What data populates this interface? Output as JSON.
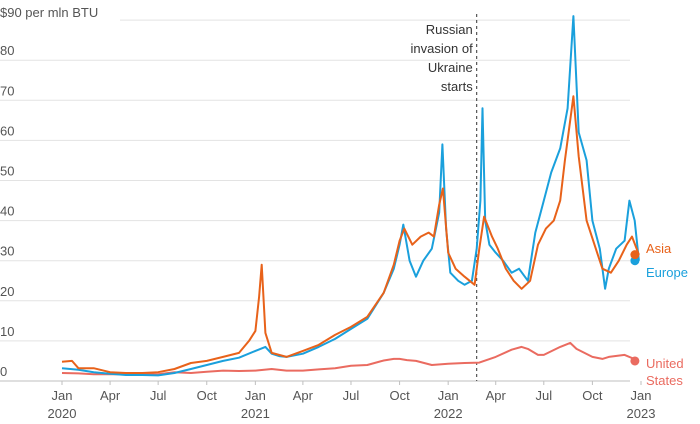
{
  "chart_data": {
    "type": "line",
    "ylabel_prefix": "$90 per mln BTU",
    "ylim": [
      0,
      90
    ],
    "y_ticks": [
      0,
      10,
      20,
      30,
      40,
      50,
      60,
      70,
      80
    ],
    "x_range": [
      "2020-01-01",
      "2023-01-01"
    ],
    "x_ticks": [
      {
        "date": "2020-01-01",
        "label": "Jan",
        "year": "2020"
      },
      {
        "date": "2020-04-01",
        "label": "Apr",
        "year": ""
      },
      {
        "date": "2020-07-01",
        "label": "Jul",
        "year": ""
      },
      {
        "date": "2020-10-01",
        "label": "Oct",
        "year": ""
      },
      {
        "date": "2021-01-01",
        "label": "Jan",
        "year": "2021"
      },
      {
        "date": "2021-04-01",
        "label": "Apr",
        "year": ""
      },
      {
        "date": "2021-07-01",
        "label": "Jul",
        "year": ""
      },
      {
        "date": "2021-10-01",
        "label": "Oct",
        "year": ""
      },
      {
        "date": "2022-01-01",
        "label": "Jan",
        "year": "2022"
      },
      {
        "date": "2022-04-01",
        "label": "Apr",
        "year": ""
      },
      {
        "date": "2022-07-01",
        "label": "Jul",
        "year": ""
      },
      {
        "date": "2022-10-01",
        "label": "Oct",
        "year": ""
      },
      {
        "date": "2023-01-01",
        "label": "Jan",
        "year": "2023"
      }
    ],
    "annotation": {
      "date": "2022-02-24",
      "lines": [
        "Russian",
        "invasion of",
        "Ukraine",
        "starts"
      ]
    },
    "series": [
      {
        "name": "Europe",
        "label_lines": [
          "Europe"
        ],
        "color": "#1aa0dc",
        "points": [
          [
            "2020-01-01",
            3.2
          ],
          [
            "2020-02-01",
            2.8
          ],
          [
            "2020-03-01",
            2.2
          ],
          [
            "2020-04-01",
            1.8
          ],
          [
            "2020-05-01",
            1.5
          ],
          [
            "2020-06-01",
            1.5
          ],
          [
            "2020-07-01",
            1.4
          ],
          [
            "2020-08-01",
            2.0
          ],
          [
            "2020-09-01",
            3.0
          ],
          [
            "2020-10-01",
            4.0
          ],
          [
            "2020-11-01",
            5.0
          ],
          [
            "2020-12-01",
            5.8
          ],
          [
            "2021-01-01",
            7.5
          ],
          [
            "2021-01-20",
            8.5
          ],
          [
            "2021-02-01",
            6.8
          ],
          [
            "2021-02-15",
            6.2
          ],
          [
            "2021-03-01",
            6.0
          ],
          [
            "2021-04-01",
            6.8
          ],
          [
            "2021-05-01",
            8.5
          ],
          [
            "2021-06-01",
            10.5
          ],
          [
            "2021-07-01",
            13.0
          ],
          [
            "2021-08-01",
            15.5
          ],
          [
            "2021-09-01",
            22.0
          ],
          [
            "2021-09-20",
            28.0
          ],
          [
            "2021-10-01",
            34.0
          ],
          [
            "2021-10-08",
            39.0
          ],
          [
            "2021-10-20",
            30.0
          ],
          [
            "2021-11-01",
            26.0
          ],
          [
            "2021-11-15",
            30.0
          ],
          [
            "2021-12-01",
            33.0
          ],
          [
            "2021-12-15",
            42.0
          ],
          [
            "2021-12-21",
            59.0
          ],
          [
            "2021-12-28",
            38.0
          ],
          [
            "2022-01-05",
            27.0
          ],
          [
            "2022-01-20",
            25.0
          ],
          [
            "2022-02-01",
            24.0
          ],
          [
            "2022-02-15",
            25.0
          ],
          [
            "2022-02-24",
            33.0
          ],
          [
            "2022-03-03",
            45.0
          ],
          [
            "2022-03-07",
            68.0
          ],
          [
            "2022-03-12",
            40.0
          ],
          [
            "2022-03-20",
            34.0
          ],
          [
            "2022-04-01",
            32.0
          ],
          [
            "2022-04-15",
            30.0
          ],
          [
            "2022-05-01",
            27.0
          ],
          [
            "2022-05-15",
            28.0
          ],
          [
            "2022-06-01",
            25.0
          ],
          [
            "2022-06-15",
            37.0
          ],
          [
            "2022-07-01",
            45.0
          ],
          [
            "2022-07-15",
            52.0
          ],
          [
            "2022-08-01",
            58.0
          ],
          [
            "2022-08-15",
            68.0
          ],
          [
            "2022-08-26",
            91.0
          ],
          [
            "2022-09-05",
            62.0
          ],
          [
            "2022-09-20",
            55.0
          ],
          [
            "2022-10-01",
            40.0
          ],
          [
            "2022-10-15",
            33.0
          ],
          [
            "2022-10-25",
            23.0
          ],
          [
            "2022-11-01",
            28.0
          ],
          [
            "2022-11-15",
            33.0
          ],
          [
            "2022-12-01",
            35.0
          ],
          [
            "2022-12-10",
            45.0
          ],
          [
            "2022-12-20",
            40.0
          ],
          [
            "2022-12-28",
            30.0
          ]
        ]
      },
      {
        "name": "Asia",
        "label_lines": [
          "Asia"
        ],
        "color": "#e8621a",
        "points": [
          [
            "2020-01-01",
            4.8
          ],
          [
            "2020-01-20",
            5.0
          ],
          [
            "2020-02-01",
            3.2
          ],
          [
            "2020-03-01",
            3.2
          ],
          [
            "2020-04-01",
            2.2
          ],
          [
            "2020-05-01",
            2.0
          ],
          [
            "2020-06-01",
            2.0
          ],
          [
            "2020-07-01",
            2.2
          ],
          [
            "2020-08-01",
            3.0
          ],
          [
            "2020-09-01",
            4.5
          ],
          [
            "2020-10-01",
            5.0
          ],
          [
            "2020-11-01",
            6.0
          ],
          [
            "2020-12-01",
            7.0
          ],
          [
            "2020-12-20",
            10.0
          ],
          [
            "2021-01-01",
            12.5
          ],
          [
            "2021-01-08",
            21.0
          ],
          [
            "2021-01-13",
            29.0
          ],
          [
            "2021-01-20",
            12.0
          ],
          [
            "2021-02-01",
            7.0
          ],
          [
            "2021-03-01",
            6.0
          ],
          [
            "2021-04-01",
            7.5
          ],
          [
            "2021-05-01",
            9.0
          ],
          [
            "2021-06-01",
            11.5
          ],
          [
            "2021-07-01",
            13.5
          ],
          [
            "2021-08-01",
            16.0
          ],
          [
            "2021-09-01",
            22.0
          ],
          [
            "2021-09-20",
            29.0
          ],
          [
            "2021-10-01",
            35.0
          ],
          [
            "2021-10-10",
            38.0
          ],
          [
            "2021-10-25",
            34.0
          ],
          [
            "2021-11-10",
            36.0
          ],
          [
            "2021-11-25",
            37.0
          ],
          [
            "2021-12-05",
            36.0
          ],
          [
            "2021-12-15",
            44.0
          ],
          [
            "2021-12-22",
            48.0
          ],
          [
            "2022-01-01",
            32.0
          ],
          [
            "2022-01-15",
            28.0
          ],
          [
            "2022-02-01",
            26.0
          ],
          [
            "2022-02-20",
            24.0
          ],
          [
            "2022-03-01",
            33.0
          ],
          [
            "2022-03-10",
            41.0
          ],
          [
            "2022-03-25",
            36.0
          ],
          [
            "2022-04-05",
            33.0
          ],
          [
            "2022-04-20",
            28.0
          ],
          [
            "2022-05-05",
            25.0
          ],
          [
            "2022-05-20",
            23.0
          ],
          [
            "2022-06-05",
            25.0
          ],
          [
            "2022-06-20",
            34.0
          ],
          [
            "2022-07-05",
            38.0
          ],
          [
            "2022-07-20",
            40.0
          ],
          [
            "2022-08-01",
            45.0
          ],
          [
            "2022-08-10",
            55.0
          ],
          [
            "2022-08-26",
            71.0
          ],
          [
            "2022-09-05",
            56.0
          ],
          [
            "2022-09-20",
            40.0
          ],
          [
            "2022-10-05",
            34.0
          ],
          [
            "2022-10-20",
            28.0
          ],
          [
            "2022-11-05",
            27.0
          ],
          [
            "2022-11-20",
            30.0
          ],
          [
            "2022-12-05",
            34.0
          ],
          [
            "2022-12-15",
            36.0
          ],
          [
            "2022-12-28",
            31.5
          ]
        ]
      },
      {
        "name": "United States",
        "label_lines": [
          "United",
          "States"
        ],
        "color": "#ea6b60",
        "points": [
          [
            "2020-01-01",
            2.0
          ],
          [
            "2020-02-01",
            1.9
          ],
          [
            "2020-03-01",
            1.7
          ],
          [
            "2020-04-01",
            1.7
          ],
          [
            "2020-05-01",
            1.7
          ],
          [
            "2020-06-01",
            1.6
          ],
          [
            "2020-07-01",
            1.7
          ],
          [
            "2020-08-01",
            2.2
          ],
          [
            "2020-09-01",
            2.0
          ],
          [
            "2020-10-01",
            2.3
          ],
          [
            "2020-11-01",
            2.6
          ],
          [
            "2020-12-01",
            2.5
          ],
          [
            "2021-01-01",
            2.6
          ],
          [
            "2021-02-01",
            3.0
          ],
          [
            "2021-03-01",
            2.6
          ],
          [
            "2021-04-01",
            2.6
          ],
          [
            "2021-05-01",
            2.9
          ],
          [
            "2021-06-01",
            3.2
          ],
          [
            "2021-07-01",
            3.8
          ],
          [
            "2021-08-01",
            4.0
          ],
          [
            "2021-09-01",
            5.1
          ],
          [
            "2021-09-20",
            5.5
          ],
          [
            "2021-10-01",
            5.5
          ],
          [
            "2021-10-15",
            5.2
          ],
          [
            "2021-11-01",
            5.0
          ],
          [
            "2021-12-01",
            4.0
          ],
          [
            "2022-01-01",
            4.3
          ],
          [
            "2022-02-01",
            4.5
          ],
          [
            "2022-03-01",
            4.6
          ],
          [
            "2022-04-01",
            6.0
          ],
          [
            "2022-05-01",
            7.8
          ],
          [
            "2022-05-20",
            8.5
          ],
          [
            "2022-06-01",
            8.0
          ],
          [
            "2022-06-20",
            6.5
          ],
          [
            "2022-07-01",
            6.5
          ],
          [
            "2022-08-01",
            8.5
          ],
          [
            "2022-08-20",
            9.5
          ],
          [
            "2022-09-01",
            8.0
          ],
          [
            "2022-10-01",
            6.0
          ],
          [
            "2022-10-20",
            5.5
          ],
          [
            "2022-11-01",
            6.0
          ],
          [
            "2022-12-01",
            6.5
          ],
          [
            "2022-12-28",
            5.0
          ]
        ]
      }
    ]
  }
}
